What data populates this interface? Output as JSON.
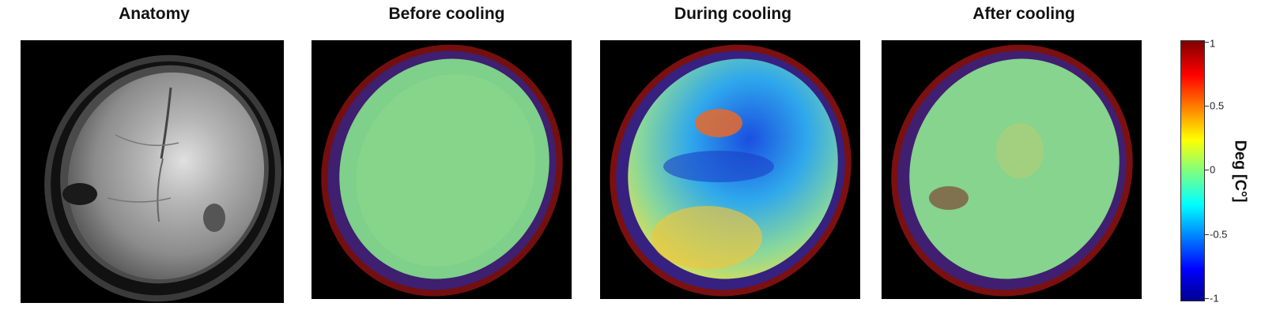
{
  "panels": [
    {
      "title": "Anatomy"
    },
    {
      "title": "Before cooling"
    },
    {
      "title": "During cooling"
    },
    {
      "title": "After cooling"
    }
  ],
  "colorbar": {
    "label": "Deg [C°]",
    "ticks": [
      "1",
      "0.5",
      "0",
      "-0.5",
      "-1"
    ],
    "colormap": "jet",
    "range": [
      -1,
      1
    ]
  },
  "colors": {
    "background": "#000000",
    "text": "#111111"
  }
}
